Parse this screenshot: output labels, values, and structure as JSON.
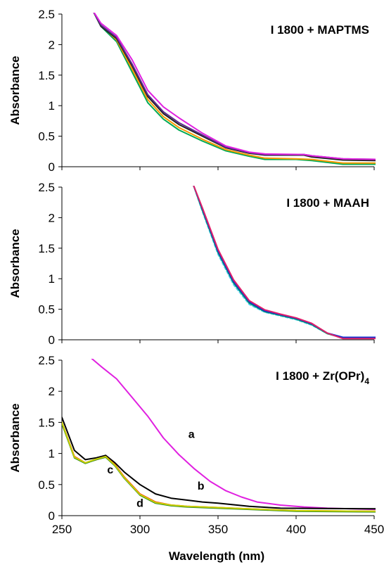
{
  "chart_data": [
    {
      "type": "line",
      "title": "I 1800 + MAPTMS",
      "title_sub": "",
      "xlabel": "",
      "ylabel": "Absorbance",
      "xlim": [
        250,
        450
      ],
      "ylim": [
        0,
        2.5
      ],
      "xticks": [
        250,
        300,
        350,
        400,
        450
      ],
      "yticks": [
        0,
        0.5,
        1,
        1.5,
        2,
        2.5
      ],
      "xtick_labels_visible": false,
      "grid": false,
      "series": [
        {
          "color": "#00aa55",
          "points": [
            [
              270,
              2.55
            ],
            [
              275,
              2.3
            ],
            [
              285,
              2.05
            ],
            [
              295,
              1.55
            ],
            [
              305,
              1.05
            ],
            [
              315,
              0.78
            ],
            [
              325,
              0.6
            ],
            [
              340,
              0.42
            ],
            [
              355,
              0.26
            ],
            [
              370,
              0.17
            ],
            [
              380,
              0.12
            ],
            [
              400,
              0.12
            ],
            [
              410,
              0.1
            ],
            [
              430,
              0.04
            ],
            [
              452,
              0.04
            ]
          ]
        },
        {
          "color": "#ff9900",
          "points": [
            [
              270,
              2.55
            ],
            [
              275,
              2.32
            ],
            [
              285,
              2.08
            ],
            [
              295,
              1.6
            ],
            [
              305,
              1.1
            ],
            [
              315,
              0.82
            ],
            [
              325,
              0.64
            ],
            [
              340,
              0.45
            ],
            [
              355,
              0.28
            ],
            [
              370,
              0.19
            ],
            [
              380,
              0.14
            ],
            [
              400,
              0.13
            ],
            [
              410,
              0.12
            ],
            [
              430,
              0.06
            ],
            [
              452,
              0.06
            ]
          ]
        },
        {
          "color": "#222222",
          "points": [
            [
              270,
              2.55
            ],
            [
              275,
              2.3
            ],
            [
              285,
              2.1
            ],
            [
              295,
              1.65
            ],
            [
              305,
              1.15
            ],
            [
              315,
              0.87
            ],
            [
              325,
              0.69
            ],
            [
              340,
              0.5
            ],
            [
              355,
              0.31
            ],
            [
              370,
              0.22
            ],
            [
              380,
              0.19
            ],
            [
              405,
              0.19
            ],
            [
              410,
              0.16
            ],
            [
              430,
              0.11
            ],
            [
              452,
              0.1
            ]
          ]
        },
        {
          "color": "#5b2c8e",
          "points": [
            [
              270,
              2.55
            ],
            [
              275,
              2.32
            ],
            [
              285,
              2.12
            ],
            [
              295,
              1.68
            ],
            [
              305,
              1.18
            ],
            [
              315,
              0.9
            ],
            [
              325,
              0.72
            ],
            [
              340,
              0.52
            ],
            [
              355,
              0.32
            ],
            [
              370,
              0.23
            ],
            [
              380,
              0.2
            ],
            [
              405,
              0.2
            ],
            [
              410,
              0.18
            ],
            [
              430,
              0.13
            ],
            [
              452,
              0.12
            ]
          ]
        },
        {
          "color": "#e020e0",
          "points": [
            [
              270,
              2.55
            ],
            [
              275,
              2.35
            ],
            [
              285,
              2.15
            ],
            [
              295,
              1.75
            ],
            [
              305,
              1.25
            ],
            [
              315,
              0.98
            ],
            [
              325,
              0.8
            ],
            [
              340,
              0.55
            ],
            [
              355,
              0.34
            ],
            [
              370,
              0.24
            ],
            [
              380,
              0.21
            ],
            [
              405,
              0.2
            ],
            [
              410,
              0.18
            ],
            [
              430,
              0.13
            ],
            [
              452,
              0.12
            ]
          ]
        }
      ]
    },
    {
      "type": "line",
      "title": "I 1800 + MAAH",
      "title_sub": "",
      "xlabel": "",
      "ylabel": "Absorbance",
      "xlim": [
        250,
        450
      ],
      "ylim": [
        0,
        2.5
      ],
      "xticks": [
        250,
        300,
        350,
        400,
        450
      ],
      "yticks": [
        0,
        0.5,
        1,
        1.5,
        2,
        2.5
      ],
      "xtick_labels_visible": false,
      "grid": false,
      "series": [
        {
          "color": "#55ccff",
          "dashed": true,
          "points": [
            [
              334,
              2.55
            ],
            [
              340,
              2.1
            ],
            [
              350,
              1.4
            ],
            [
              360,
              0.9
            ],
            [
              370,
              0.58
            ],
            [
              380,
              0.45
            ],
            [
              390,
              0.39
            ],
            [
              400,
              0.33
            ],
            [
              410,
              0.24
            ],
            [
              420,
              0.1
            ],
            [
              430,
              0.03
            ],
            [
              452,
              0.03
            ]
          ]
        },
        {
          "color": "#00aa55",
          "points": [
            [
              334,
              2.55
            ],
            [
              340,
              2.12
            ],
            [
              350,
              1.43
            ],
            [
              360,
              0.93
            ],
            [
              370,
              0.6
            ],
            [
              380,
              0.46
            ],
            [
              390,
              0.4
            ],
            [
              400,
              0.34
            ],
            [
              410,
              0.25
            ],
            [
              420,
              0.1
            ],
            [
              430,
              0.03
            ],
            [
              452,
              0.03
            ]
          ]
        },
        {
          "color": "#1030d0",
          "points": [
            [
              334,
              2.55
            ],
            [
              340,
              2.14
            ],
            [
              350,
              1.45
            ],
            [
              360,
              0.95
            ],
            [
              370,
              0.62
            ],
            [
              380,
              0.47
            ],
            [
              390,
              0.41
            ],
            [
              400,
              0.35
            ],
            [
              410,
              0.26
            ],
            [
              420,
              0.11
            ],
            [
              430,
              0.04
            ],
            [
              452,
              0.04
            ]
          ]
        },
        {
          "color": "#e0206a",
          "points": [
            [
              334,
              2.55
            ],
            [
              340,
              2.16
            ],
            [
              350,
              1.48
            ],
            [
              360,
              0.98
            ],
            [
              370,
              0.64
            ],
            [
              380,
              0.49
            ],
            [
              390,
              0.42
            ],
            [
              400,
              0.36
            ],
            [
              410,
              0.27
            ],
            [
              420,
              0.11
            ],
            [
              430,
              0.02
            ],
            [
              452,
              0.02
            ]
          ]
        }
      ]
    },
    {
      "type": "line",
      "title": "I 1800 + Zr(OPr)",
      "title_sub": "4",
      "xlabel": "Wavelength (nm)",
      "ylabel": "Absorbance",
      "xlim": [
        250,
        450
      ],
      "ylim": [
        0,
        2.5
      ],
      "xticks": [
        250,
        300,
        350,
        400,
        450
      ],
      "yticks": [
        0,
        0.5,
        1,
        1.5,
        2,
        2.5
      ],
      "xtick_labels_visible": true,
      "grid": false,
      "annotations": [
        {
          "text": "a",
          "x": 333,
          "y": 1.25
        },
        {
          "text": "b",
          "x": 339,
          "y": 0.42
        },
        {
          "text": "c",
          "x": 281,
          "y": 0.68
        },
        {
          "text": "d",
          "x": 300,
          "y": 0.14
        }
      ],
      "series": [
        {
          "name": "a",
          "color": "#e020e0",
          "points": [
            [
              268,
              2.55
            ],
            [
              275,
              2.4
            ],
            [
              285,
              2.2
            ],
            [
              295,
              1.9
            ],
            [
              305,
              1.6
            ],
            [
              315,
              1.25
            ],
            [
              325,
              0.98
            ],
            [
              335,
              0.75
            ],
            [
              345,
              0.55
            ],
            [
              355,
              0.4
            ],
            [
              365,
              0.3
            ],
            [
              375,
              0.22
            ],
            [
              390,
              0.17
            ],
            [
              405,
              0.14
            ],
            [
              420,
              0.12
            ],
            [
              452,
              0.1
            ]
          ]
        },
        {
          "name": "b",
          "color": "#000000",
          "points": [
            [
              250,
              1.58
            ],
            [
              258,
              1.05
            ],
            [
              265,
              0.9
            ],
            [
              272,
              0.93
            ],
            [
              278,
              0.97
            ],
            [
              284,
              0.85
            ],
            [
              290,
              0.7
            ],
            [
              300,
              0.5
            ],
            [
              310,
              0.35
            ],
            [
              320,
              0.28
            ],
            [
              330,
              0.25
            ],
            [
              340,
              0.22
            ],
            [
              350,
              0.2
            ],
            [
              370,
              0.15
            ],
            [
              390,
              0.12
            ],
            [
              452,
              0.11
            ]
          ]
        },
        {
          "name": "c",
          "color": "#ff3000",
          "points": [
            [
              250,
              1.5
            ],
            [
              258,
              0.95
            ],
            [
              265,
              0.85
            ],
            [
              272,
              0.9
            ],
            [
              278,
              0.95
            ],
            [
              284,
              0.82
            ],
            [
              290,
              0.62
            ],
            [
              300,
              0.35
            ],
            [
              310,
              0.22
            ],
            [
              320,
              0.17
            ],
            [
              330,
              0.15
            ],
            [
              350,
              0.13
            ],
            [
              380,
              0.1
            ],
            [
              400,
              0.08
            ],
            [
              452,
              0.07
            ]
          ]
        },
        {
          "name": "d",
          "color": "#2a8a20",
          "points": [
            [
              250,
              1.48
            ],
            [
              258,
              0.93
            ],
            [
              265,
              0.84
            ],
            [
              272,
              0.9
            ],
            [
              278,
              0.94
            ],
            [
              284,
              0.8
            ],
            [
              290,
              0.6
            ],
            [
              300,
              0.33
            ],
            [
              310,
              0.2
            ],
            [
              320,
              0.16
            ],
            [
              330,
              0.14
            ],
            [
              350,
              0.12
            ],
            [
              380,
              0.09
            ],
            [
              400,
              0.07
            ],
            [
              452,
              0.06
            ]
          ]
        },
        {
          "color": "#c8d000",
          "points": [
            [
              250,
              1.5
            ],
            [
              258,
              0.94
            ],
            [
              265,
              0.85
            ],
            [
              272,
              0.91
            ],
            [
              278,
              0.95
            ],
            [
              284,
              0.81
            ],
            [
              290,
              0.61
            ],
            [
              300,
              0.34
            ],
            [
              310,
              0.21
            ],
            [
              320,
              0.17
            ],
            [
              330,
              0.15
            ],
            [
              350,
              0.13
            ],
            [
              380,
              0.1
            ],
            [
              400,
              0.08
            ],
            [
              452,
              0.07
            ]
          ]
        }
      ]
    }
  ]
}
